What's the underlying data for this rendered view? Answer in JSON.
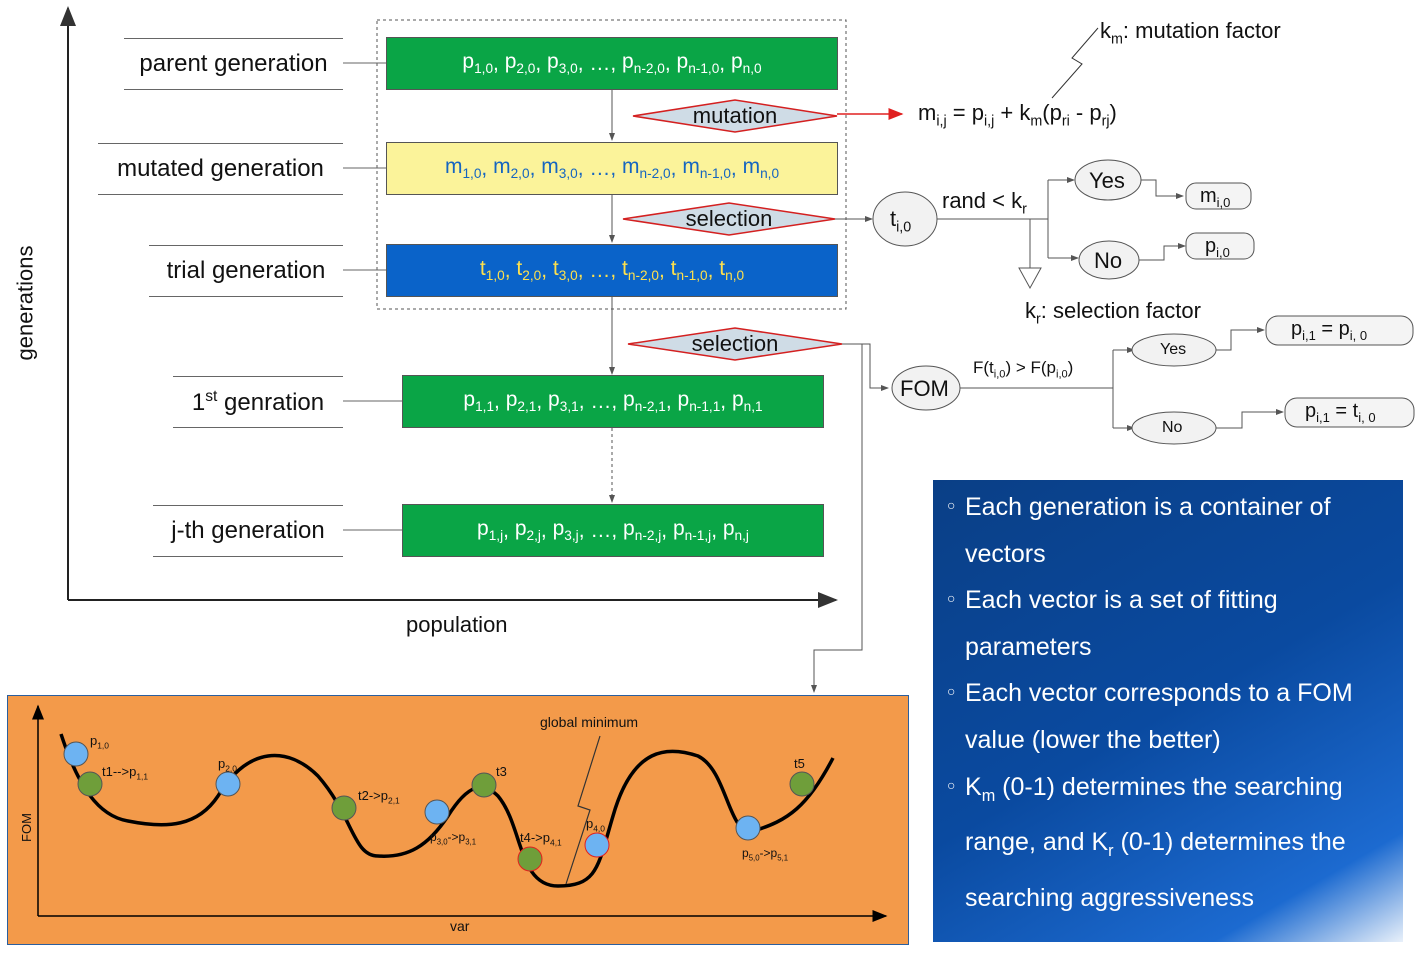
{
  "axes": {
    "y_label": "generations",
    "x_label": "population"
  },
  "generation_labels": {
    "parent": "parent generation",
    "mutated": "mutated generation",
    "trial": "trial generation",
    "first_prefix": "1",
    "first_sup": "st",
    "first_suffix": " genration",
    "jth": "j-th generation"
  },
  "vectors": {
    "parent": "p1,0, p2,0, p3,0, …, pn-2,0, pn-1,0, pn,0",
    "mutated": "m1,0, m2,0, m3,0, …, mn-2,0, mn-1,0, mn,0",
    "trial": "t1,0, t2,0, t3,0, …, tn-2,0, tn-1,0, tn,0",
    "first": "p1,1, p2,1, p3,1, …, pn-2,1, pn-1,1, pn,1",
    "jth": "p1,j, p2,j, p3,j, …, pn-2,j, pn-1,j, pn,j"
  },
  "ops": {
    "mutation": "mutation",
    "selection1": "selection",
    "selection2": "selection"
  },
  "mutation": {
    "factor_label": "km: mutation factor",
    "formula": "mi,j = pi,j + km(pri - prj)"
  },
  "selection_branch": {
    "node": "ti,0",
    "condition": "rand < kr",
    "yes": "Yes",
    "no": "No",
    "yes_result": "mi,0",
    "no_result": "pi,0",
    "factor_label": "kr: selection factor"
  },
  "fom_branch": {
    "node": "FOM",
    "condition": "F(ti,0) > F(pi,0)",
    "yes": "Yes",
    "no": "No",
    "yes_result": "pi,1 = pi, 0",
    "no_result": "pi,1 = ti, 0"
  },
  "info_box": [
    "Each generation is a container of vectors",
    "Each vector is a set of fitting parameters",
    "Each vector corresponds to a FOM value (lower the better)",
    "Km (0-1) determines the searching range, and Kr (0-1) determines the searching aggressiveness"
  ],
  "plot": {
    "y_label": "FOM",
    "x_label": "var",
    "annotation": "global minimum",
    "point_labels": [
      "p1,0",
      "t1-->p1,1",
      "p2,0",
      "t2->p2,1",
      "p3,0->p3,1",
      "t3",
      "t4->p4,1",
      "p4,0",
      "p5,0->p5,1",
      "t5"
    ]
  },
  "colors": {
    "green": "#0aa546",
    "yellow": "#fbf39a",
    "blue": "#0a63c9",
    "orange": "#f39a4a",
    "circle_blue": "#6db3f2",
    "circle_green": "#6f9e3a"
  }
}
